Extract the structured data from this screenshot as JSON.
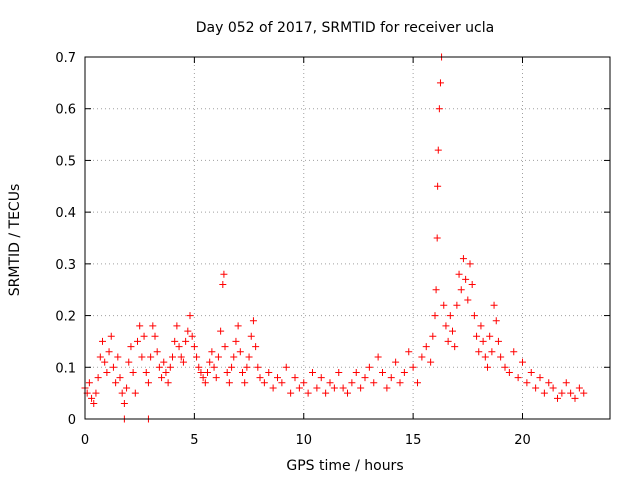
{
  "chart_data": {
    "type": "scatter",
    "title": "Day 052 of 2017, SRMTID for receiver ucla",
    "xlabel": "GPS time / hours",
    "ylabel": "SRMTID / TECUs",
    "xlim": [
      0,
      24
    ],
    "ylim": [
      0,
      0.7
    ],
    "xticks": [
      0,
      5,
      10,
      15,
      20
    ],
    "xtick_labels": [
      "0",
      "5",
      "10",
      "15",
      "20"
    ],
    "yticks": [
      0,
      0.1,
      0.2,
      0.3,
      0.4,
      0.5,
      0.6,
      0.7
    ],
    "ytick_labels": [
      "0",
      "0.1",
      "0.2",
      "0.3",
      "0.4",
      "0.5",
      "0.6",
      "0.7"
    ],
    "grid": true,
    "marker": "plus",
    "color": "#ff0000",
    "series": [
      {
        "name": "SRMTID",
        "x": [
          0.0,
          0.1,
          0.2,
          0.3,
          0.4,
          0.5,
          0.6,
          0.7,
          0.8,
          0.9,
          1.0,
          1.1,
          1.2,
          1.3,
          1.4,
          1.5,
          1.6,
          1.7,
          1.8,
          1.9,
          2.0,
          2.1,
          2.2,
          2.3,
          2.4,
          2.5,
          2.6,
          2.7,
          2.8,
          2.9,
          3.0,
          3.1,
          3.2,
          3.3,
          3.4,
          3.5,
          3.6,
          3.7,
          3.8,
          3.9,
          4.0,
          4.1,
          4.2,
          4.3,
          4.4,
          4.5,
          4.6,
          4.7,
          4.8,
          4.9,
          5.0,
          5.1,
          5.2,
          5.3,
          5.4,
          5.5,
          5.6,
          5.7,
          5.8,
          5.9,
          6.0,
          6.1,
          6.2,
          6.3,
          6.35,
          6.4,
          6.5,
          6.6,
          6.7,
          6.8,
          6.9,
          7.0,
          7.1,
          7.2,
          7.3,
          7.4,
          7.5,
          7.6,
          7.7,
          7.8,
          7.9,
          8.0,
          8.2,
          8.4,
          8.6,
          8.8,
          9.0,
          9.2,
          9.4,
          9.6,
          9.8,
          10.0,
          10.2,
          10.4,
          10.6,
          10.8,
          11.0,
          11.2,
          11.4,
          11.6,
          11.8,
          12.0,
          12.2,
          12.4,
          12.6,
          12.8,
          13.0,
          13.2,
          13.4,
          13.6,
          13.8,
          14.0,
          14.2,
          14.4,
          14.6,
          14.8,
          15.0,
          15.2,
          15.4,
          15.6,
          15.8,
          15.9,
          16.0,
          16.05,
          16.1,
          16.12,
          16.15,
          16.2,
          16.25,
          16.3,
          16.4,
          16.5,
          16.6,
          16.7,
          16.8,
          16.9,
          17.0,
          17.1,
          17.2,
          17.3,
          17.4,
          17.5,
          17.6,
          17.7,
          17.8,
          17.9,
          18.0,
          18.1,
          18.2,
          18.3,
          18.4,
          18.5,
          18.6,
          18.7,
          18.8,
          18.9,
          19.0,
          19.2,
          19.4,
          19.6,
          19.8,
          20.0,
          20.2,
          20.4,
          20.6,
          20.8,
          21.0,
          21.2,
          21.4,
          21.6,
          21.8,
          22.0,
          22.2,
          22.4,
          22.6,
          22.8,
          1.8,
          2.9
        ],
        "y": [
          0.06,
          0.05,
          0.07,
          0.04,
          0.03,
          0.05,
          0.08,
          0.12,
          0.15,
          0.11,
          0.09,
          0.13,
          0.16,
          0.1,
          0.07,
          0.12,
          0.08,
          0.05,
          0.03,
          0.06,
          0.11,
          0.14,
          0.09,
          0.05,
          0.15,
          0.18,
          0.12,
          0.16,
          0.09,
          0.07,
          0.12,
          0.18,
          0.16,
          0.13,
          0.1,
          0.08,
          0.11,
          0.09,
          0.07,
          0.1,
          0.12,
          0.15,
          0.18,
          0.14,
          0.12,
          0.11,
          0.15,
          0.17,
          0.2,
          0.16,
          0.14,
          0.12,
          0.1,
          0.09,
          0.08,
          0.07,
          0.09,
          0.11,
          0.13,
          0.1,
          0.08,
          0.12,
          0.17,
          0.26,
          0.28,
          0.14,
          0.09,
          0.07,
          0.1,
          0.12,
          0.15,
          0.18,
          0.13,
          0.09,
          0.07,
          0.1,
          0.12,
          0.16,
          0.19,
          0.14,
          0.1,
          0.08,
          0.07,
          0.09,
          0.06,
          0.08,
          0.07,
          0.1,
          0.05,
          0.08,
          0.06,
          0.07,
          0.05,
          0.09,
          0.06,
          0.08,
          0.05,
          0.07,
          0.06,
          0.09,
          0.06,
          0.05,
          0.07,
          0.09,
          0.06,
          0.08,
          0.1,
          0.07,
          0.12,
          0.09,
          0.06,
          0.08,
          0.11,
          0.07,
          0.09,
          0.13,
          0.1,
          0.07,
          0.12,
          0.14,
          0.11,
          0.16,
          0.2,
          0.25,
          0.35,
          0.45,
          0.52,
          0.6,
          0.65,
          0.7,
          0.22,
          0.18,
          0.15,
          0.2,
          0.17,
          0.14,
          0.22,
          0.28,
          0.25,
          0.31,
          0.27,
          0.23,
          0.3,
          0.26,
          0.2,
          0.16,
          0.13,
          0.18,
          0.15,
          0.12,
          0.1,
          0.16,
          0.13,
          0.22,
          0.19,
          0.15,
          0.12,
          0.1,
          0.09,
          0.13,
          0.08,
          0.11,
          0.07,
          0.09,
          0.06,
          0.08,
          0.05,
          0.07,
          0.06,
          0.04,
          0.05,
          0.07,
          0.05,
          0.04,
          0.06,
          0.05,
          0.0,
          0.0
        ]
      }
    ]
  }
}
